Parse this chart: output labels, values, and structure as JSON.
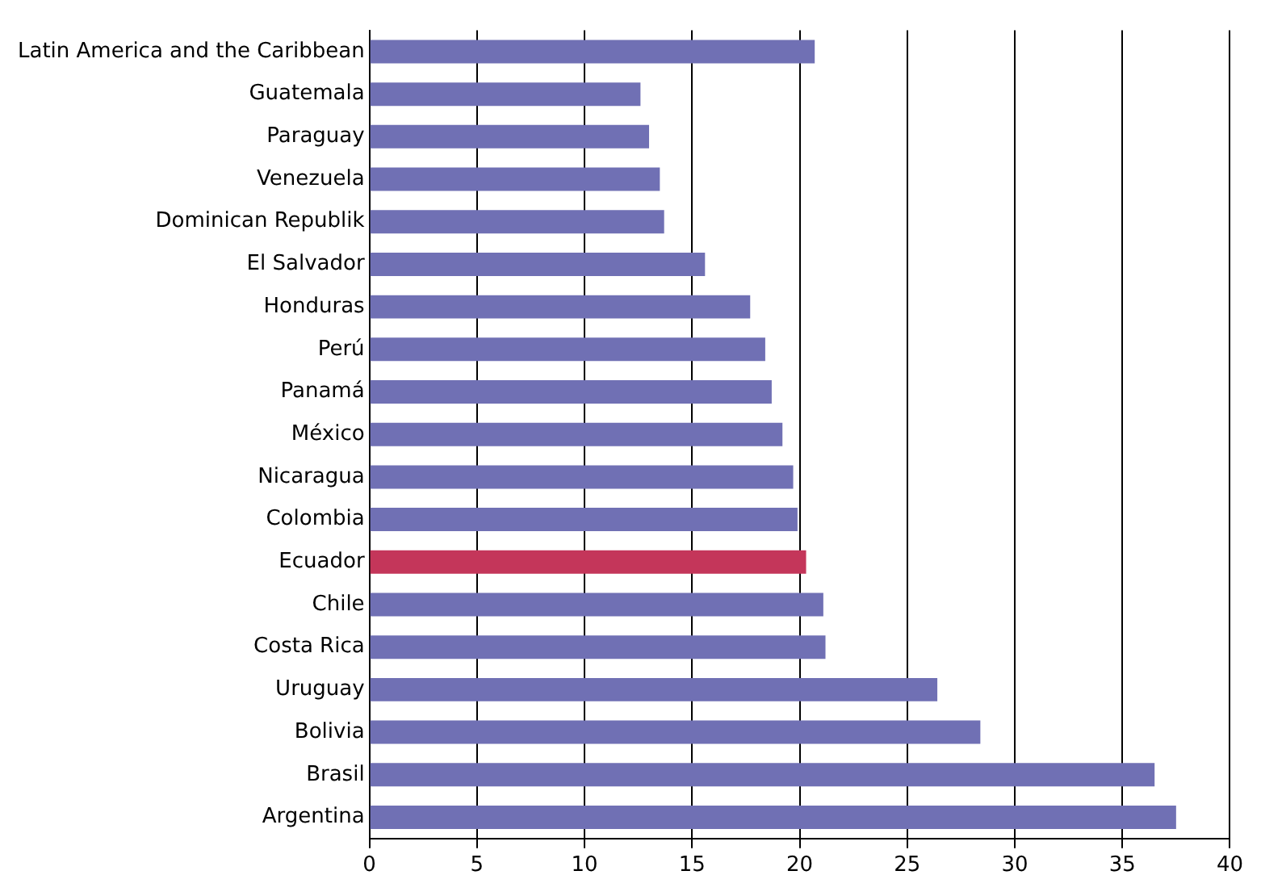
{
  "chart_data": {
    "type": "bar",
    "orientation": "horizontal",
    "categories": [
      "Latin America and the Caribbean",
      "Guatemala",
      "Paraguay",
      "Venezuela",
      "Dominican Republik",
      "El Salvador",
      "Honduras",
      "Perú",
      "Panamá",
      "México",
      "Nicaragua",
      "Colombia",
      "Ecuador",
      "Chile",
      "Costa Rica",
      "Uruguay",
      "Bolivia",
      "Brasil",
      "Argentina"
    ],
    "values": [
      20.7,
      12.6,
      13.0,
      13.5,
      13.7,
      15.6,
      17.7,
      18.4,
      18.7,
      19.2,
      19.7,
      19.9,
      20.3,
      21.1,
      21.2,
      26.4,
      28.4,
      36.5,
      37.5
    ],
    "colors": [
      "#7070b4",
      "#7070b4",
      "#7070b4",
      "#7070b4",
      "#7070b4",
      "#7070b4",
      "#7070b4",
      "#7070b4",
      "#7070b4",
      "#7070b4",
      "#7070b4",
      "#7070b4",
      "#c4365a",
      "#7070b4",
      "#7070b4",
      "#7070b4",
      "#7070b4",
      "#7070b4",
      "#7070b4"
    ],
    "xlim": [
      0,
      40
    ],
    "xticks": [
      0,
      5,
      10,
      15,
      20,
      25,
      30,
      35,
      40
    ],
    "grid": "x"
  }
}
